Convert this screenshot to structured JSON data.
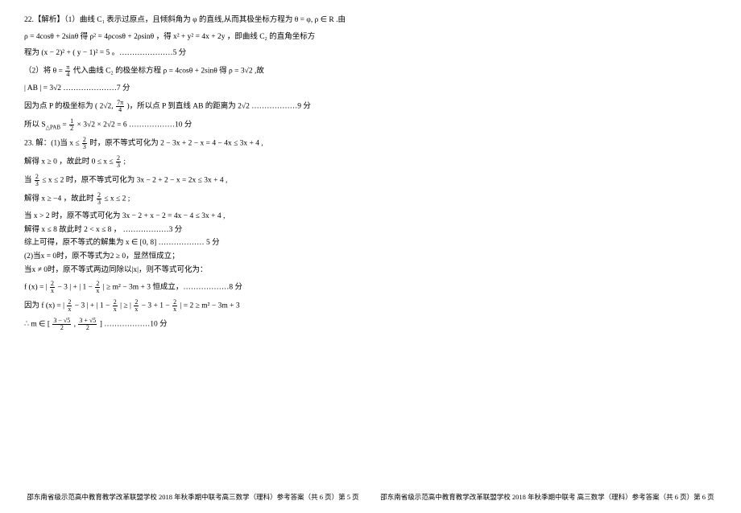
{
  "problem22": {
    "l1": "22.【解析】（1）曲线 C₁ 表示过原点，且倾斜角为 φ 的直线,从而其极坐标方程为 θ = φ, ρ ∈ R .由",
    "l2": "ρ = 4cosθ + 2sinθ 得 ρ² = 4ρcosθ + 2ρsinθ ，得 x² + y² = 4x + 2y  ，即曲线 C₂ 的直角坐标方",
    "l3": "程为 (x − 2)² + ( y − 1)² = 5 。…………………5 分",
    "l4_a": "（2）将 θ = ",
    "l4_frac_n": "π",
    "l4_frac_d": "4",
    "l4_b": " 代入曲线 C₂ 的极坐标方程 ρ = 4cosθ + 2sinθ  得 ρ = 3√2 ,故",
    "l5": "  | AB | = 3√2                                                         …………………7 分",
    "l6_a": "因为点 P 的极坐标为 ( 2√2, ",
    "l6_frac_n": "7π",
    "l6_frac_d": "4",
    "l6_b": " )，所以点 P 到直线 AB 的距离为 2√2    ………………9 分",
    "l7_a": "所以 S",
    "l7_sub": "△PAB",
    "l7_b": " = ",
    "l7_frac_n": "1",
    "l7_frac_d": "2",
    "l7_c": " × 3√2 × 2√2 = 6      ………………10 分"
  },
  "problem23": {
    "l1_a": "23.  解：(1)当 x ≤ ",
    "l1_frac_n": "2",
    "l1_frac_d": "3",
    "l1_b": " 时，原不等式可化为 2 − 3x + 2 − x = 4 − 4x ≤ 3x + 4 ,",
    "l2_a": "解得 x ≥ 0 ，故此时 0 ≤ x ≤ ",
    "l2_frac_n": "2",
    "l2_frac_d": "3",
    "l2_b": " ;",
    "l3_a": "当 ",
    "l3_frac1_n": "2",
    "l3_frac1_d": "3",
    "l3_b": " ≤ x ≤ 2 时，原不等式可化为 3x − 2 + 2 − x = 2x ≤ 3x + 4 ,",
    "l4_a": "解得 x ≥ −4 ，故此时 ",
    "l4_frac_n": "2",
    "l4_frac_d": "3",
    "l4_b": " ≤ x ≤ 2 ;",
    "l5": "当 x > 2 时，原不等式可化为 3x − 2 + x − 2 = 4x − 4 ≤ 3x + 4 ,",
    "l6": "解得 x ≤ 8 故此时 2 < x ≤ 8 ， ………………3 分",
    "l7": "综上可得，原不等式的解集为 x ∈ [0, 8] ……………… 5 分",
    "l8": "(2)当x = 0时，原不等式为2 ≥ 0，显然恒成立；",
    "l9": "当x ≠ 0时，原不等式两边同除以|x|，则不等式可化为：",
    "l10_a": "f (x) = | ",
    "l10_frac1_n": "2",
    "l10_frac1_d": "x",
    "l10_b": " − 3 | + | 1 − ",
    "l10_frac2_n": "2",
    "l10_frac2_d": "x",
    "l10_c": " | ≥ m² − 3m + 3 恒成立，………………8 分",
    "l11_a": "因为 f (x) = | ",
    "l11_frac1_n": "2",
    "l11_frac1_d": "x",
    "l11_b": " − 3 | + | 1 − ",
    "l11_frac2_n": "2",
    "l11_frac2_d": "x",
    "l11_c": " | ≥ | ",
    "l11_frac3_n": "2",
    "l11_frac3_d": "x",
    "l11_d": " − 3 + 1 − ",
    "l11_frac4_n": "2",
    "l11_frac4_d": "x",
    "l11_e": " | = 2 ≥ m² − 3m + 3",
    "l12_a": "∴ m ∈ [ ",
    "l12_frac1_n": "3 − √5",
    "l12_frac1_d": "2",
    "l12_b": " , ",
    "l12_frac2_n": "3 + √5",
    "l12_frac2_d": "2",
    "l12_c": " ] ………………10 分"
  },
  "footer": {
    "left": "邵东南省级示范高中教育教学改革联盟学校 2018 年秋季期中联考高三数学（理科）参考答案（共 6 页）第 5 页",
    "right": "邵东南省级示范高中教育教学改革联盟学校 2018 年秋季期中联考   高三数学（理科）参考答案（共 6 页）第 6 页"
  }
}
